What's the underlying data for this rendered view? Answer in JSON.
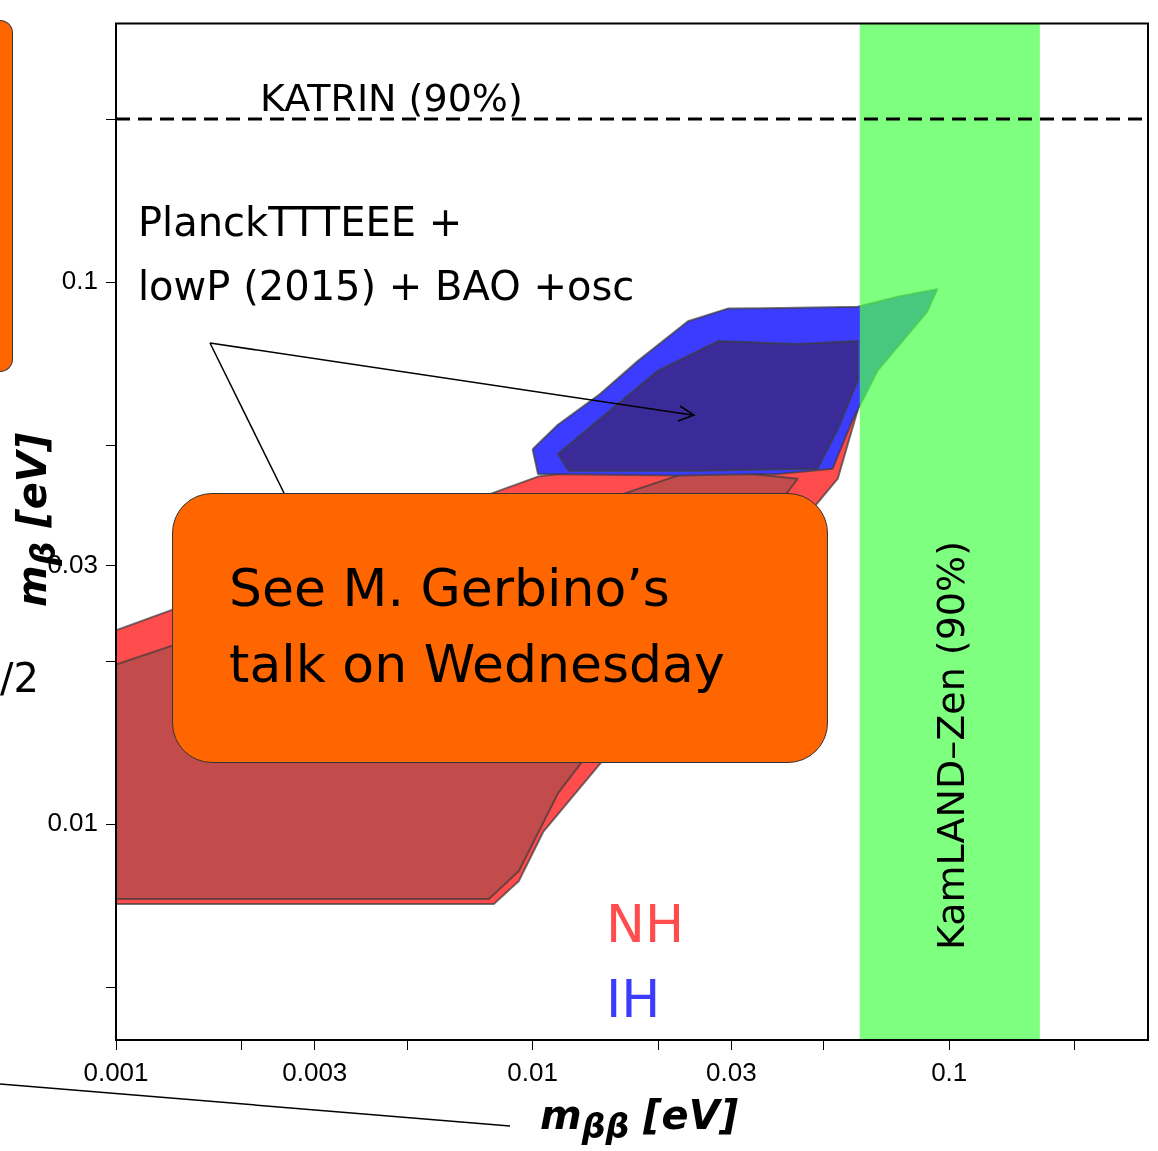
{
  "chart_data": {
    "type": "area",
    "xlabel": "m$_{ββ}$ [eV]",
    "ylabel": "m$_{β}$ [eV]",
    "log": "xy",
    "xlim": [
      0.001,
      0.3
    ],
    "ylim": [
      0.004,
      0.3
    ],
    "xticks": [
      0.001,
      {
        "value": 0.002,
        "label": null
      },
      0.003,
      {
        "value": 0.005,
        "label": null
      },
      0.01,
      {
        "value": 0.02,
        "label": null
      },
      0.03,
      {
        "value": 0.05,
        "label": null
      },
      0.1,
      {
        "value": 0.2,
        "label": null
      }
    ],
    "yticks": [
      {
        "value": 0.005,
        "label": null
      },
      0.01,
      {
        "value": 0.02,
        "label": null
      },
      0.03,
      {
        "value": 0.05,
        "label": null
      },
      0.1,
      {
        "value": 0.2,
        "label": null
      }
    ],
    "grid": false,
    "legend": false,
    "marker": "none",
    "series": [
      {
        "name": "NH",
        "color": "#ff4d4d",
        "x": [
          0.001,
          0.00275,
          0.00743,
          0.0103,
          0.025,
          0.0511,
          0.0603,
          0.054,
          0.0433,
          0.025,
          0.0152,
          0.0125,
          0.0106,
          0.00926,
          0.00807,
          0.001,
          0.001
        ],
        "values": [
          0.0228,
          null,
          null,
          0.0438,
          null,
          0.0513,
          0.0581,
          0.0434,
          null,
          null,
          null,
          null,
          0.00968,
          0.00785,
          0.00713,
          0.00713,
          0.0228
        ]
      },
      {
        "color": "#c24c4c",
        "x": [
          0.001,
          0.00275,
          0.00743,
          0.0106,
          0.025,
          0.0433,
          0.025,
          0.0144,
          0.0115,
          0.00926,
          0.00785,
          0.001,
          0.001
        ],
        "values": [
          0.0197,
          null,
          null,
          null,
          0.0453,
          0.0434,
          null,
          null,
          0.0114,
          0.00819,
          0.00728,
          0.00728,
          0.0197
        ]
      },
      {
        "name": "IH",
        "color": "#3c3cff",
        "x": [
          0.01,
          0.0115,
          0.0144,
          0.0179,
          0.0236,
          0.0294,
          0.0433,
          0.0603,
          0.0751,
          0.0936,
          0.0885,
          0.0673,
          0.0586,
          0.0525,
          0.0388,
          0.0223,
          0.0103,
          0.01
        ],
        "values": [
          0.0492,
          0.0546,
          0.0619,
          0.0716,
          0.0847,
          0.0894,
          0.0897,
          0.0901,
          0.094,
          0.0971,
          0.0882,
          0.0687,
          0.0557,
          0.0453,
          0.0443,
          0.044,
          0.0443,
          0.0492
        ]
      },
      {
        "color": "#3b2b99",
        "x": [
          0.0115,
          0.0144,
          0.02,
          0.0279,
          0.0433,
          0.0603,
          0.0603,
          0.054,
          0.0483,
          0.025,
          0.0122,
          0.0115
        ],
        "values": [
          0.0482,
          0.0557,
          0.0687,
          0.0779,
          0.0769,
          0.0779,
          0.0659,
          0.0535,
          0.0453,
          0.0449,
          0.0449,
          0.0482
        ]
      }
    ],
    "ref_lines": [
      {
        "axis": "y",
        "value": 0.2,
        "label": "KATRIN (90%)",
        "line_style": "dashed",
        "color": "#000000"
      }
    ],
    "bands": [
      {
        "axis": "x",
        "from": 0.061,
        "to": 0.165,
        "label": "KamLAND–Zen (90%)",
        "color": "#4dff4d"
      }
    ],
    "annotations": [
      "PlanckTTTEEE +\nlowP (2015) + BAO +osc",
      "See M. Gerbino’s\ntalk on Wednesday",
      "/2"
    ]
  }
}
